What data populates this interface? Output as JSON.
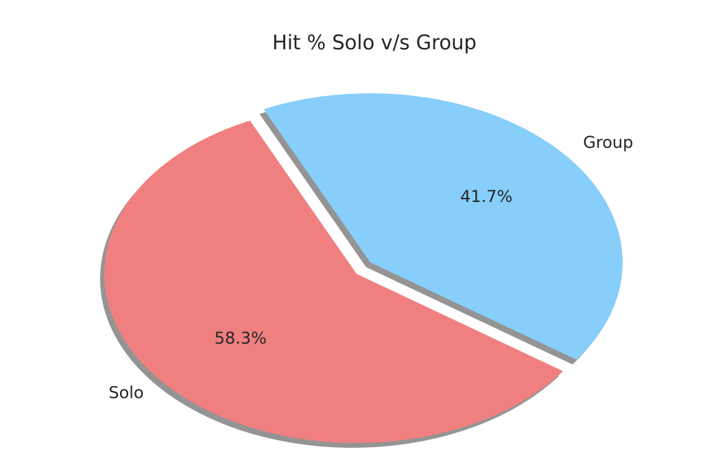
{
  "chart_data": {
    "type": "pie",
    "title": "Hit % Solo v/s Group",
    "slices": [
      {
        "label": "Solo",
        "value": 58.3,
        "pct_label": "58.3%",
        "color": "#f08080",
        "exploded": false
      },
      {
        "label": "Group",
        "value": 41.7,
        "pct_label": "41.7%",
        "color": "#87cefa",
        "exploded": true
      }
    ],
    "shadow": true,
    "legend": "none"
  }
}
